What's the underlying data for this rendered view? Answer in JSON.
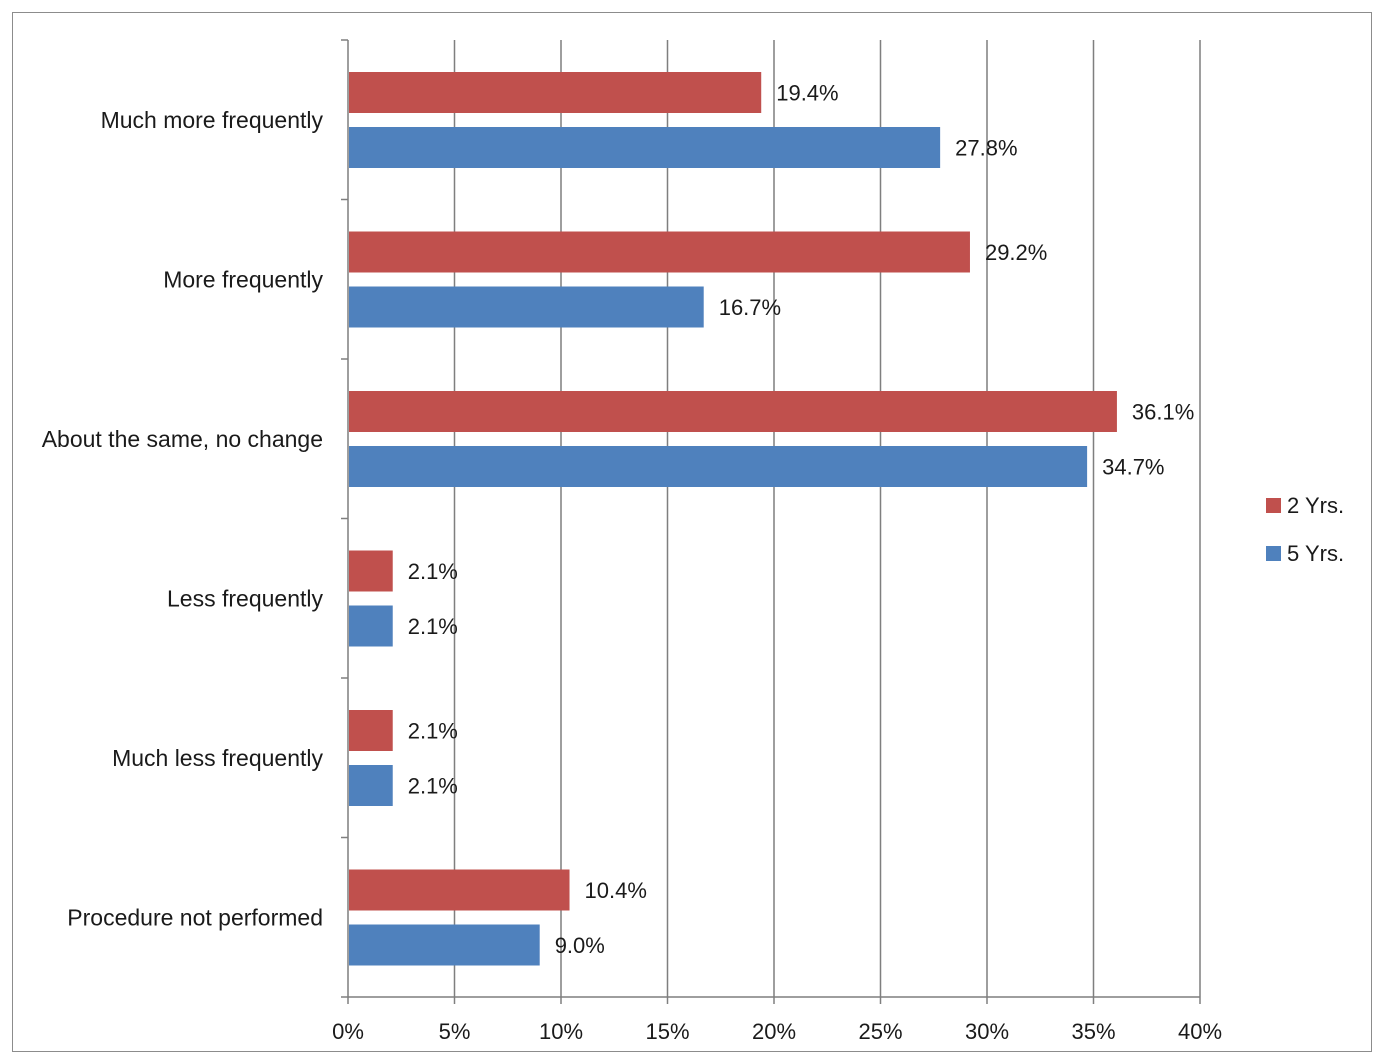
{
  "chart_data": {
    "type": "bar",
    "orientation": "horizontal",
    "categories": [
      "Much more frequently",
      "More frequently",
      "About the same, no change",
      "Less frequently",
      "Much less frequently",
      "Procedure not performed"
    ],
    "series": [
      {
        "name": "2 Yrs.",
        "color": "#c0504d",
        "values": [
          19.4,
          29.2,
          36.1,
          2.1,
          2.1,
          10.4
        ],
        "labels": [
          "19.4%",
          "29.2%",
          "36.1%",
          "2.1%",
          "2.1%",
          "10.4%"
        ]
      },
      {
        "name": "5 Yrs.",
        "color": "#4f81bd",
        "values": [
          27.8,
          16.7,
          34.7,
          2.1,
          2.1,
          9.0
        ],
        "labels": [
          "27.8%",
          "16.7%",
          "34.7%",
          "2.1%",
          "2.1%",
          "9.0%"
        ]
      }
    ],
    "xlim": [
      0,
      40
    ],
    "xticks": [
      0,
      5,
      10,
      15,
      20,
      25,
      30,
      35,
      40
    ],
    "xtick_labels": [
      "0%",
      "5%",
      "10%",
      "15%",
      "20%",
      "25%",
      "30%",
      "35%",
      "40%"
    ],
    "grid": "vertical",
    "legend_position": "right",
    "title": "",
    "xlabel": "",
    "ylabel": ""
  }
}
